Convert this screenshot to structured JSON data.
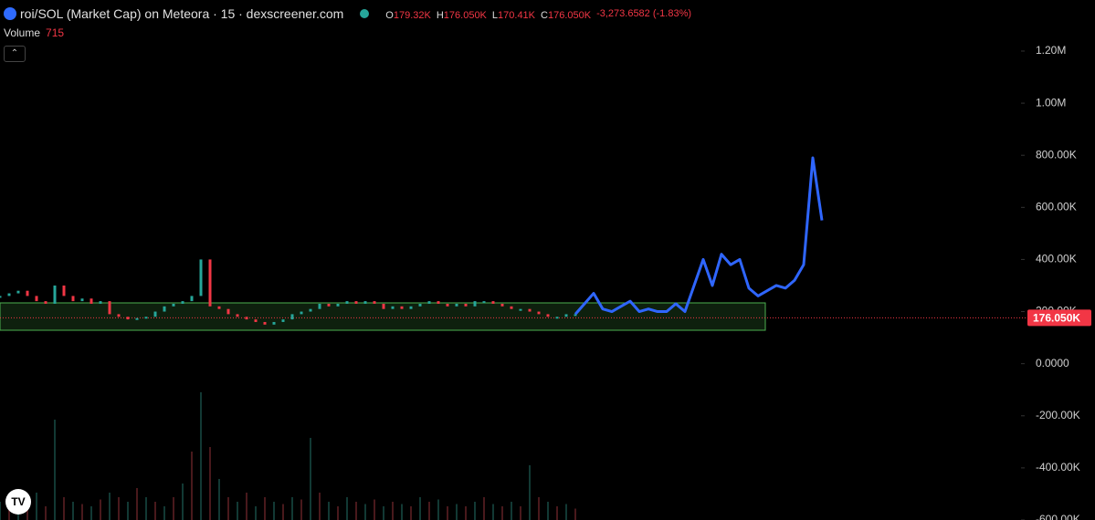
{
  "header": {
    "title": "roi/SOL (Market Cap) on Meteora · 15 · dexscreener.com",
    "ohlc": [
      {
        "key": "O",
        "value": "179.32K"
      },
      {
        "key": "H",
        "value": "176.050K"
      },
      {
        "key": "L",
        "value": "170.41K"
      },
      {
        "key": "C",
        "value": "176.050K"
      }
    ],
    "change": "-3,273.6582 (-1.83%)",
    "volume_label": "Volume",
    "volume": "715"
  },
  "chart_data": {
    "type": "candlestick",
    "x": [
      0,
      1,
      2,
      3,
      4,
      5,
      6,
      7,
      8,
      9,
      10,
      11,
      12,
      13,
      14,
      15,
      16,
      17,
      18,
      19,
      20,
      21,
      22,
      23,
      24,
      25,
      26,
      27,
      28,
      29,
      30,
      31,
      32,
      33,
      34,
      35,
      36,
      37,
      38,
      39,
      40,
      41,
      42,
      43,
      44,
      45,
      46,
      47,
      48,
      49,
      50,
      51,
      52,
      53,
      54,
      55,
      56,
      57,
      58,
      59,
      60,
      61,
      62,
      63,
      64,
      65,
      66,
      67,
      68,
      69,
      70,
      71,
      72,
      73,
      74,
      75,
      76,
      77,
      78,
      79,
      80,
      81,
      82,
      83,
      84,
      85,
      86,
      87,
      88,
      89,
      90
    ],
    "xlim": [
      0,
      90
    ],
    "series": [
      {
        "color": "#26a69a",
        "values": [
          260000,
          270000,
          280000,
          260000,
          240000,
          230000,
          300000,
          260000,
          240000,
          250000,
          230000,
          240000,
          190000,
          180000,
          170000,
          175000,
          180000,
          200000,
          220000,
          230000,
          240000,
          260000,
          400000,
          220000,
          210000,
          190000,
          180000,
          170000,
          160000,
          150000,
          160000,
          170000,
          190000,
          200000,
          210000,
          230000,
          220000,
          230000,
          240000,
          230000,
          240000,
          230000,
          210000,
          220000,
          210000,
          220000,
          230000,
          240000,
          230000,
          220000,
          230000,
          220000,
          240000,
          240000,
          230000,
          220000,
          210000,
          210000,
          200000,
          190000,
          180000,
          180000,
          190000,
          190000,
          null,
          null,
          null,
          null,
          null,
          null,
          null,
          null,
          null,
          null,
          null,
          null,
          null,
          null,
          null,
          null,
          null,
          null,
          null,
          null,
          null,
          null,
          null,
          null,
          null,
          null,
          null
        ]
      },
      {
        "color": "#2f66ff",
        "values": [
          null,
          null,
          null,
          null,
          null,
          null,
          null,
          null,
          null,
          null,
          null,
          null,
          null,
          null,
          null,
          null,
          null,
          null,
          null,
          null,
          null,
          null,
          null,
          null,
          null,
          null,
          null,
          null,
          null,
          null,
          null,
          null,
          null,
          null,
          null,
          null,
          null,
          null,
          null,
          null,
          null,
          null,
          null,
          null,
          null,
          null,
          null,
          null,
          null,
          null,
          null,
          null,
          null,
          null,
          null,
          null,
          null,
          null,
          null,
          null,
          null,
          null,
          null,
          190000,
          230000,
          270000,
          210000,
          200000,
          220000,
          240000,
          200000,
          210000,
          200000,
          200000,
          230000,
          200000,
          300000,
          400000,
          300000,
          420000,
          380000,
          400000,
          290000,
          260000,
          280000,
          300000,
          290000,
          320000,
          380000,
          790000,
          550000
        ]
      },
      {
        "axis": "y2",
        "color": "#f23645",
        "values": [
          400,
          300,
          500,
          350,
          600,
          300,
          2200,
          500,
          400,
          350,
          300,
          450,
          600,
          500,
          400,
          700,
          500,
          400,
          300,
          500,
          800,
          1500,
          2800,
          1600,
          900,
          500,
          400,
          600,
          300,
          500,
          400,
          350,
          500,
          450,
          1800,
          600,
          400,
          300,
          500,
          400,
          350,
          450,
          300,
          400,
          350,
          300,
          500,
          400,
          450,
          300,
          350,
          300,
          400,
          500,
          350,
          300,
          400,
          300,
          1200,
          500,
          400,
          300,
          350,
          250,
          null,
          null,
          null,
          null,
          null,
          null,
          null,
          null,
          null,
          null,
          null,
          null,
          null,
          null,
          null,
          null,
          null,
          null,
          null,
          null,
          null,
          null,
          null,
          null,
          null,
          null,
          null
        ]
      }
    ],
    "ylim": [
      -600000,
      1396000
    ],
    "yticks": [
      {
        "value": 1200000,
        "label": "1.20M"
      },
      {
        "value": 1000000,
        "label": "1.00M"
      },
      {
        "value": 800000,
        "label": "800.00K"
      },
      {
        "value": 600000,
        "label": "600.00K"
      },
      {
        "value": 400000,
        "label": "400.00K"
      },
      {
        "value": 200000,
        "label": "200.00K"
      },
      {
        "value": 0,
        "label": "0.0000"
      },
      {
        "value": -200000,
        "label": "-200.00K"
      },
      {
        "value": -400000,
        "label": "-400.00K"
      },
      {
        "value": -600000,
        "label": "-600.00K"
      }
    ],
    "y2lim": [
      0,
      3000
    ],
    "last_price": {
      "value": 176050,
      "label": "176.050K"
    }
  }
}
